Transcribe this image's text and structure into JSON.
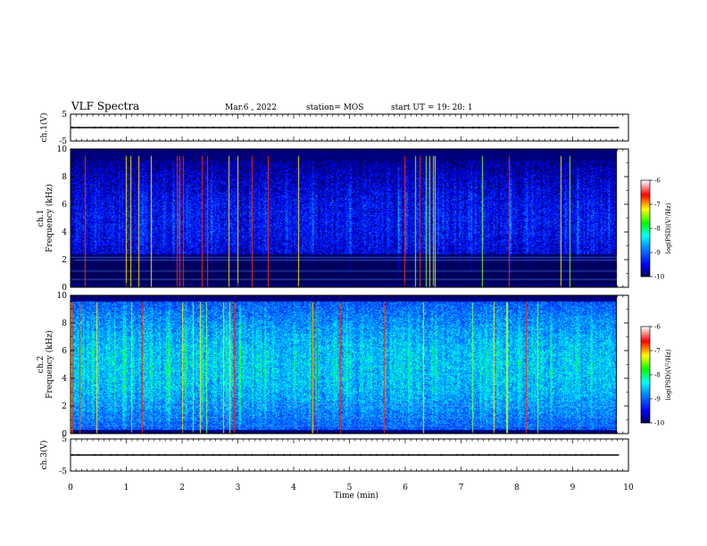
{
  "header": {
    "title": "VLF Spectra",
    "date": "Mar.6 , 2022",
    "station": "station= MOS",
    "start": "start UT = 19: 20: 1"
  },
  "chart_data": [
    {
      "type": "line",
      "name": "ch1-voltage",
      "ylabel": "ch.1(V)",
      "xlim": [
        0,
        10
      ],
      "ylim": [
        -5,
        5
      ],
      "yticks": [
        5,
        -5
      ],
      "level": 0,
      "duration_min": 9.83
    },
    {
      "type": "heatmap",
      "name": "ch1-spectrogram",
      "ylabel_channel": "ch.1",
      "ylabel": "Frequency (kHz)",
      "xlim": [
        0,
        10
      ],
      "ylim": [
        0,
        10
      ],
      "yticks": [
        0,
        2,
        4,
        6,
        8,
        10
      ],
      "colorbar": {
        "label": "log(PSD)(V²/Hz)",
        "ticks": [
          -6,
          -7,
          -8,
          -9,
          -10
        ],
        "range": [
          -10,
          -6
        ]
      },
      "band_kHz": [
        0.2,
        9.2
      ],
      "mean_level": -8.8
    },
    {
      "type": "heatmap",
      "name": "ch2-spectrogram",
      "ylabel_channel": "ch.2",
      "ylabel": "Frequency (kHz)",
      "xlim": [
        0,
        10
      ],
      "ylim": [
        0,
        10
      ],
      "yticks": [
        0,
        2,
        4,
        6,
        8,
        10
      ],
      "colorbar": {
        "label": "log(PSD)(V²/Hz)",
        "ticks": [
          -6,
          -7,
          -8,
          -9,
          -10
        ],
        "range": [
          -10,
          -6
        ]
      },
      "band_kHz": [
        0.2,
        9.6
      ],
      "mean_level": -8.0
    },
    {
      "type": "line",
      "name": "ch3-voltage",
      "ylabel": "ch.3(V)",
      "xlim": [
        0,
        10
      ],
      "ylim": [
        -5,
        5
      ],
      "yticks": [
        5,
        -5
      ],
      "level": 0,
      "duration_min": 9.83
    }
  ],
  "x_axis": {
    "label": "Time (min)",
    "ticks": [
      0,
      1,
      2,
      3,
      4,
      5,
      6,
      7,
      8,
      9,
      10
    ]
  },
  "colors": {
    "background": "#000000",
    "colormap": [
      "#000060",
      "#0000ff",
      "#00ffff",
      "#00ff00",
      "#ffff00",
      "#ff0000",
      "#ffffff"
    ]
  }
}
